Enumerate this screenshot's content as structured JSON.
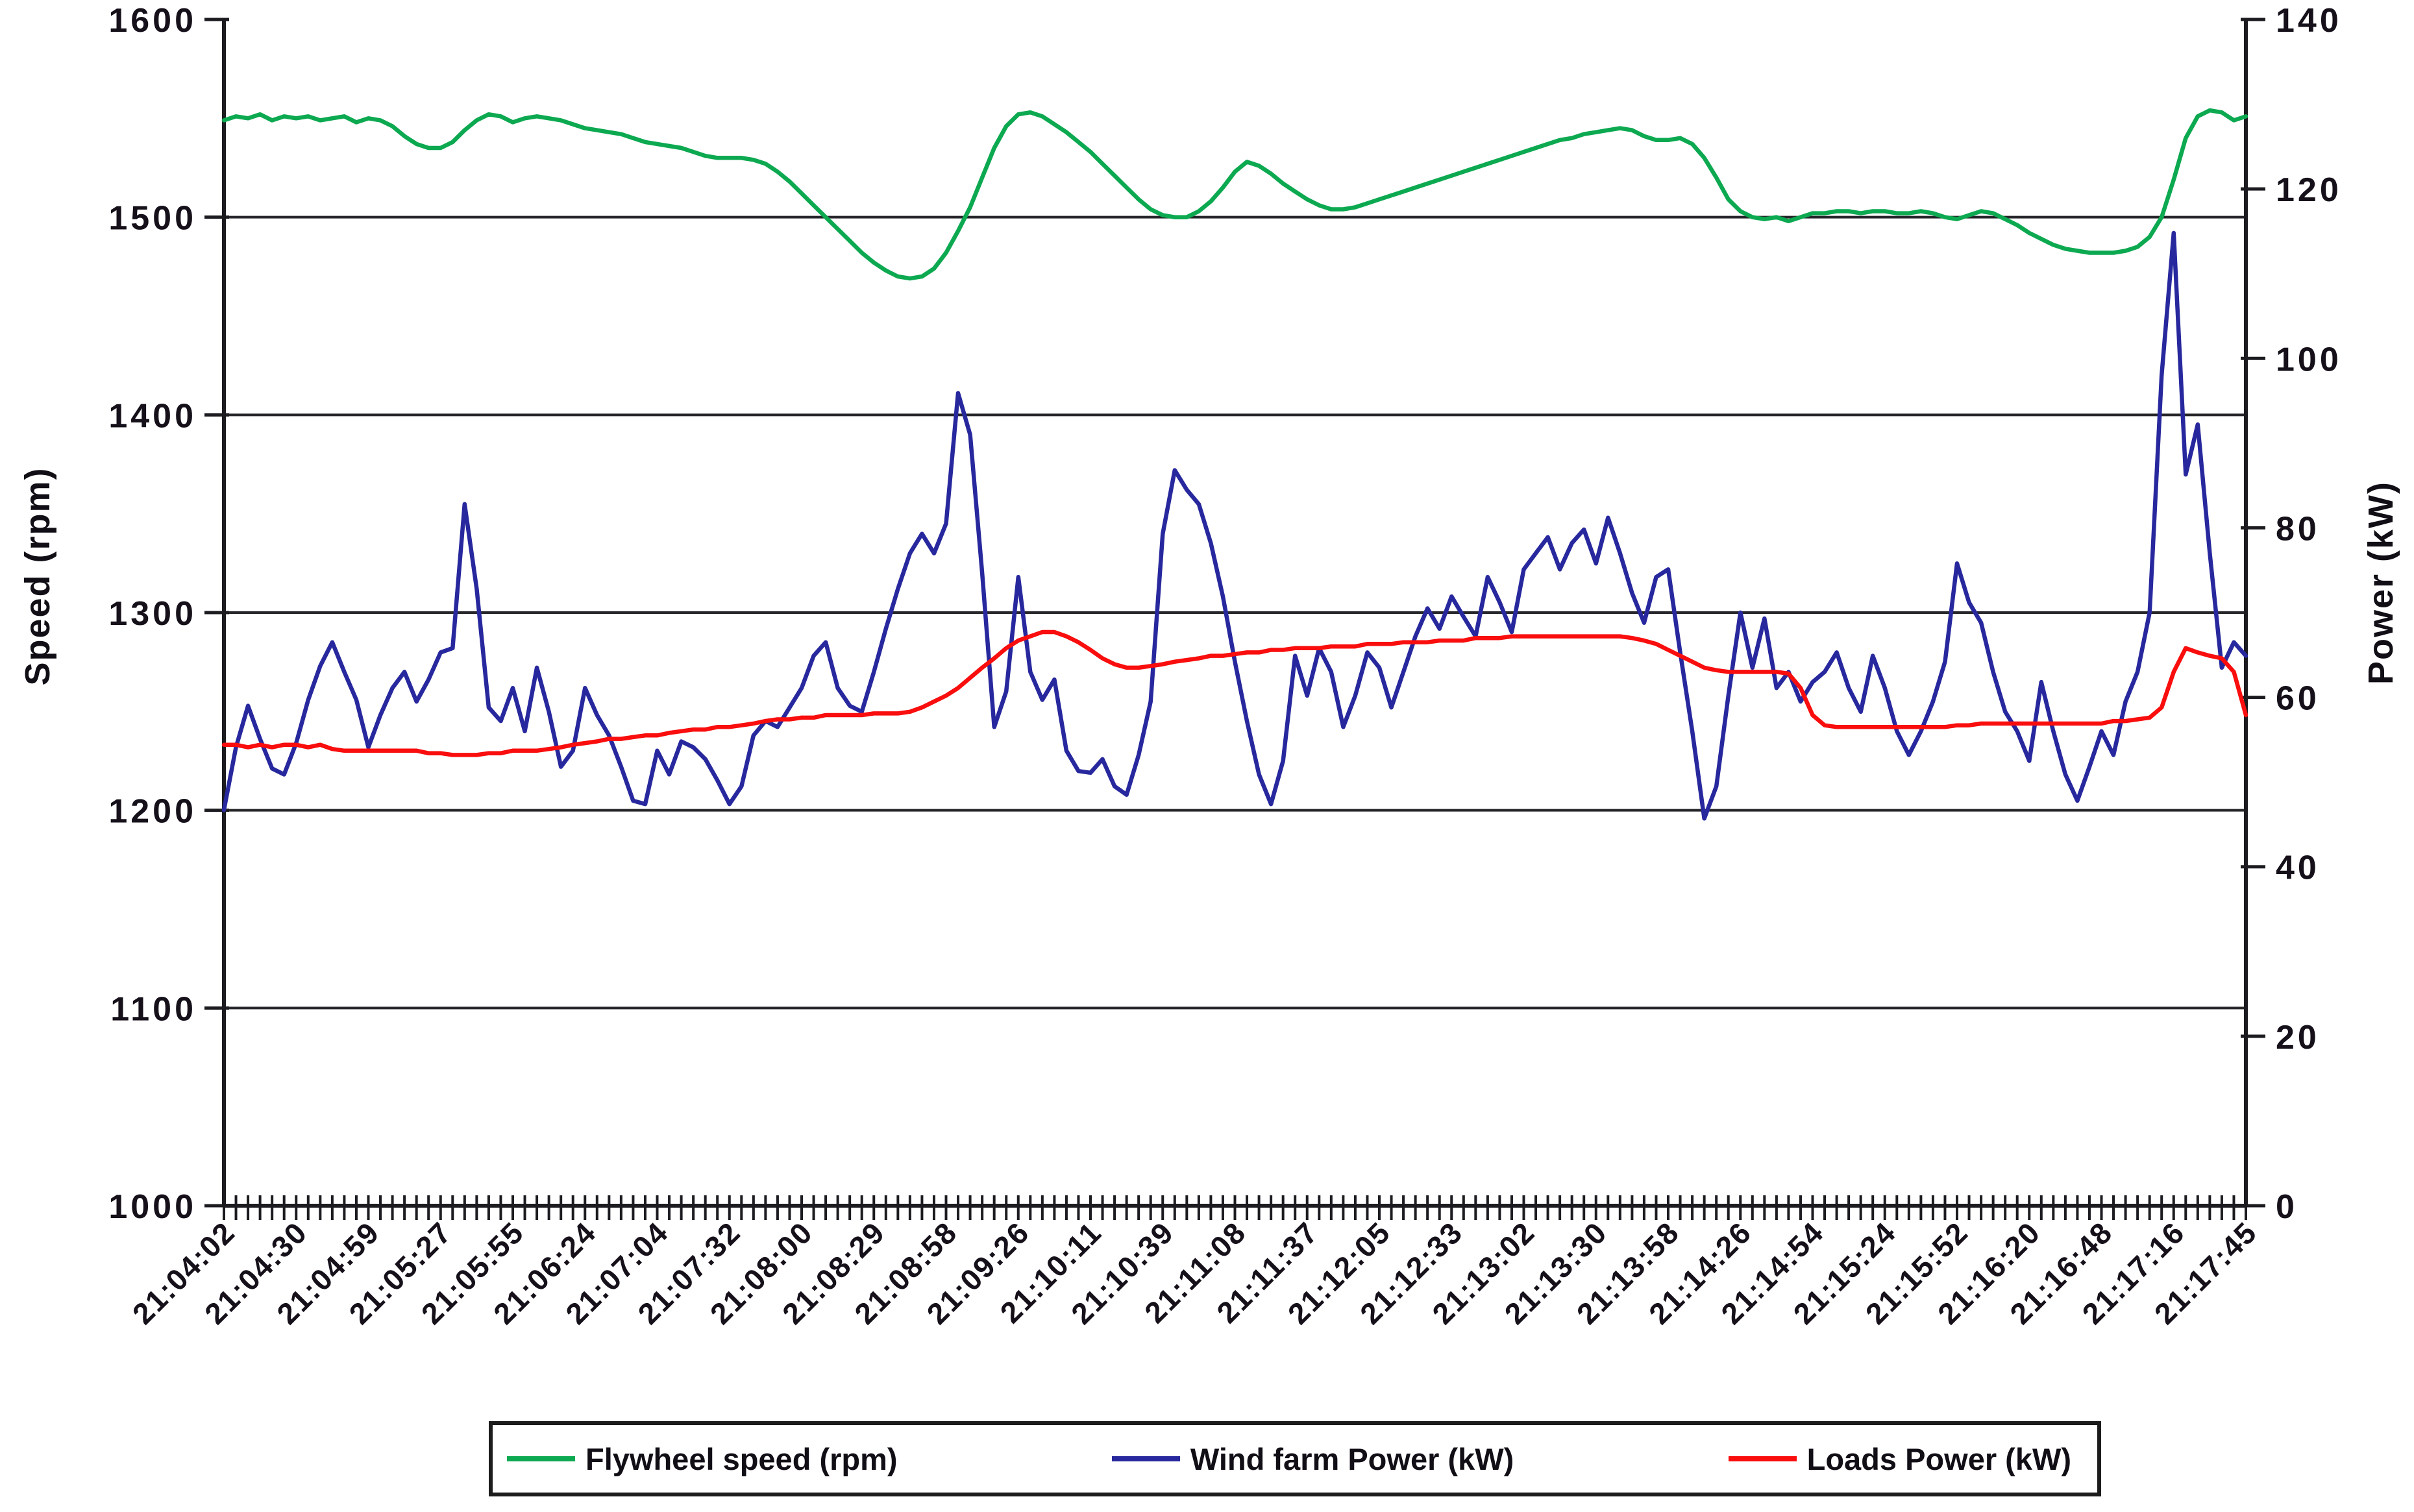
{
  "page": {
    "background": "#ffffff"
  },
  "chart_data": {
    "type": "line",
    "title": "",
    "grid": "horizontal",
    "legend_position": "bottom",
    "left_axis": {
      "label": "Speed (rpm)",
      "min": 1000,
      "max": 1600,
      "tick_step": 100,
      "ticks": [
        1600,
        1500,
        1400,
        1300,
        1200,
        1100,
        1000
      ]
    },
    "right_axis": {
      "label": "Power (kW)",
      "min": 0,
      "max": 140,
      "tick_step": 20,
      "ticks": [
        140,
        120,
        100,
        80,
        60,
        40,
        20,
        0
      ]
    },
    "x_axis": {
      "labels": [
        "21:04:02",
        "21:04:30",
        "21:04:59",
        "21:05:27",
        "21:05:55",
        "21:06:24",
        "21:07:04",
        "21:07:32",
        "21:08:00",
        "21:08:29",
        "21:08:58",
        "21:09:26",
        "21:10:11",
        "21:10:39",
        "21:11:08",
        "21:11:37",
        "21:12:05",
        "21:12:33",
        "21:13:02",
        "21:13:30",
        "21:13:58",
        "21:14:26",
        "21:14:54",
        "21:15:24",
        "21:15:52",
        "21:16:20",
        "21:16:48",
        "21:17:16",
        "21:17:45"
      ],
      "label_every_n_ticks": 6,
      "minor_tick_count": 169
    },
    "series": [
      {
        "name": "Flywheel speed (rpm)",
        "axis": "left",
        "unit": "rpm",
        "color": "#0ca951",
        "values": [
          1549,
          1551,
          1550,
          1552,
          1549,
          1551,
          1550,
          1551,
          1549,
          1550,
          1551,
          1548,
          1550,
          1549,
          1546,
          1541,
          1537,
          1535,
          1535,
          1538,
          1544,
          1549,
          1552,
          1551,
          1548,
          1550,
          1551,
          1550,
          1549,
          1547,
          1545,
          1544,
          1543,
          1542,
          1540,
          1538,
          1537,
          1536,
          1535,
          1533,
          1531,
          1530,
          1530,
          1530,
          1529,
          1527,
          1523,
          1518,
          1512,
          1506,
          1500,
          1494,
          1488,
          1482,
          1477,
          1473,
          1470,
          1469,
          1470,
          1474,
          1482,
          1493,
          1505,
          1520,
          1535,
          1546,
          1552,
          1553,
          1551,
          1547,
          1543,
          1538,
          1533,
          1527,
          1521,
          1515,
          1509,
          1504,
          1501,
          1500,
          1500,
          1503,
          1508,
          1515,
          1523,
          1528,
          1526,
          1522,
          1517,
          1513,
          1509,
          1506,
          1504,
          1504,
          1505,
          1507,
          1509,
          1511,
          1513,
          1515,
          1517,
          1519,
          1521,
          1523,
          1525,
          1527,
          1529,
          1531,
          1533,
          1535,
          1537,
          1539,
          1540,
          1542,
          1543,
          1544,
          1545,
          1544,
          1541,
          1539,
          1539,
          1540,
          1537,
          1530,
          1520,
          1509,
          1503,
          1500,
          1499,
          1500,
          1498,
          1500,
          1502,
          1502,
          1503,
          1503,
          1502,
          1503,
          1503,
          1502,
          1502,
          1503,
          1502,
          1500,
          1499,
          1501,
          1503,
          1502,
          1499,
          1496,
          1492,
          1489,
          1486,
          1484,
          1483,
          1482,
          1482,
          1482,
          1483,
          1485,
          1490,
          1500,
          1519,
          1540,
          1551,
          1554,
          1553,
          1549,
          1551
        ]
      },
      {
        "name": "Wind farm Power (kW)",
        "axis": "right",
        "unit": "kW",
        "color": "#28289e",
        "values": [
          46.7,
          54.1,
          59.0,
          55.1,
          51.6,
          50.9,
          54.6,
          59.7,
          63.7,
          66.5,
          63.0,
          59.7,
          54.1,
          57.9,
          61.1,
          63.0,
          59.5,
          62.1,
          65.3,
          65.8,
          82.8,
          72.8,
          58.8,
          57.2,
          61.1,
          56.0,
          63.5,
          58.3,
          51.8,
          53.7,
          61.1,
          57.9,
          55.5,
          51.8,
          47.8,
          47.4,
          53.7,
          50.9,
          54.8,
          54.1,
          52.7,
          50.2,
          47.4,
          49.5,
          55.5,
          57.2,
          56.5,
          58.8,
          61.1,
          64.9,
          66.5,
          61.1,
          59.0,
          58.3,
          63.0,
          68.1,
          72.8,
          77.0,
          79.3,
          77.0,
          80.5,
          95.9,
          91.0,
          74.7,
          56.5,
          60.7,
          74.2,
          63.0,
          59.7,
          62.1,
          53.7,
          51.3,
          51.1,
          52.7,
          49.5,
          48.5,
          53.2,
          59.5,
          79.3,
          86.8,
          84.5,
          82.8,
          78.2,
          71.9,
          64.2,
          57.2,
          50.9,
          47.4,
          52.5,
          64.9,
          60.2,
          65.8,
          63.0,
          56.5,
          60.2,
          65.3,
          63.5,
          58.8,
          63.0,
          67.2,
          70.5,
          68.1,
          71.9,
          69.5,
          67.2,
          74.2,
          71.2,
          67.7,
          75.1,
          77.0,
          78.9,
          75.1,
          78.2,
          79.8,
          75.8,
          81.2,
          77.0,
          72.3,
          68.8,
          74.2,
          75.1,
          65.3,
          56.0,
          45.7,
          49.5,
          60.2,
          70.0,
          63.5,
          69.3,
          61.1,
          63.0,
          59.5,
          61.8,
          63.0,
          65.3,
          61.1,
          58.3,
          64.9,
          61.1,
          56.0,
          53.2,
          56.0,
          59.5,
          64.2,
          75.8,
          71.2,
          68.8,
          63.0,
          58.3,
          56.0,
          52.5,
          61.8,
          56.0,
          50.9,
          47.8,
          51.8,
          56.0,
          53.2,
          59.5,
          63.0,
          70.0,
          98.0,
          114.8,
          86.3,
          92.2,
          77.0,
          63.5,
          66.5,
          64.9
        ]
      },
      {
        "name": "Loads Power (kW)",
        "axis": "right",
        "unit": "kW",
        "color": "#f90d0d",
        "values": [
          54.4,
          54.4,
          54.1,
          54.4,
          54.1,
          54.4,
          54.4,
          54.1,
          54.4,
          53.9,
          53.7,
          53.7,
          53.7,
          53.7,
          53.7,
          53.7,
          53.7,
          53.4,
          53.4,
          53.2,
          53.2,
          53.2,
          53.4,
          53.4,
          53.7,
          53.7,
          53.7,
          53.9,
          54.1,
          54.4,
          54.6,
          54.8,
          55.1,
          55.1,
          55.3,
          55.5,
          55.5,
          55.8,
          56.0,
          56.2,
          56.2,
          56.5,
          56.5,
          56.7,
          56.9,
          57.2,
          57.4,
          57.4,
          57.6,
          57.6,
          57.9,
          57.9,
          57.9,
          57.9,
          58.1,
          58.1,
          58.1,
          58.3,
          58.8,
          59.5,
          60.2,
          61.1,
          62.3,
          63.5,
          64.6,
          65.8,
          66.7,
          67.2,
          67.7,
          67.7,
          67.2,
          66.5,
          65.6,
          64.6,
          63.9,
          63.5,
          63.5,
          63.7,
          63.9,
          64.2,
          64.4,
          64.6,
          64.9,
          64.9,
          65.1,
          65.3,
          65.3,
          65.6,
          65.6,
          65.8,
          65.8,
          65.8,
          66.0,
          66.0,
          66.0,
          66.3,
          66.3,
          66.3,
          66.5,
          66.5,
          66.5,
          66.7,
          66.7,
          66.7,
          67.0,
          67.0,
          67.0,
          67.2,
          67.2,
          67.2,
          67.2,
          67.2,
          67.2,
          67.2,
          67.2,
          67.2,
          67.2,
          67.0,
          66.7,
          66.3,
          65.6,
          64.9,
          64.2,
          63.5,
          63.2,
          63.0,
          63.0,
          63.0,
          63.0,
          63.0,
          62.8,
          61.1,
          57.9,
          56.7,
          56.5,
          56.5,
          56.5,
          56.5,
          56.5,
          56.5,
          56.5,
          56.5,
          56.5,
          56.5,
          56.7,
          56.7,
          56.9,
          56.9,
          56.9,
          56.9,
          56.9,
          56.9,
          56.9,
          56.9,
          56.9,
          56.9,
          56.9,
          57.2,
          57.2,
          57.4,
          57.6,
          58.8,
          63.0,
          65.8,
          65.3,
          64.9,
          64.6,
          63.0,
          57.9
        ]
      }
    ]
  }
}
